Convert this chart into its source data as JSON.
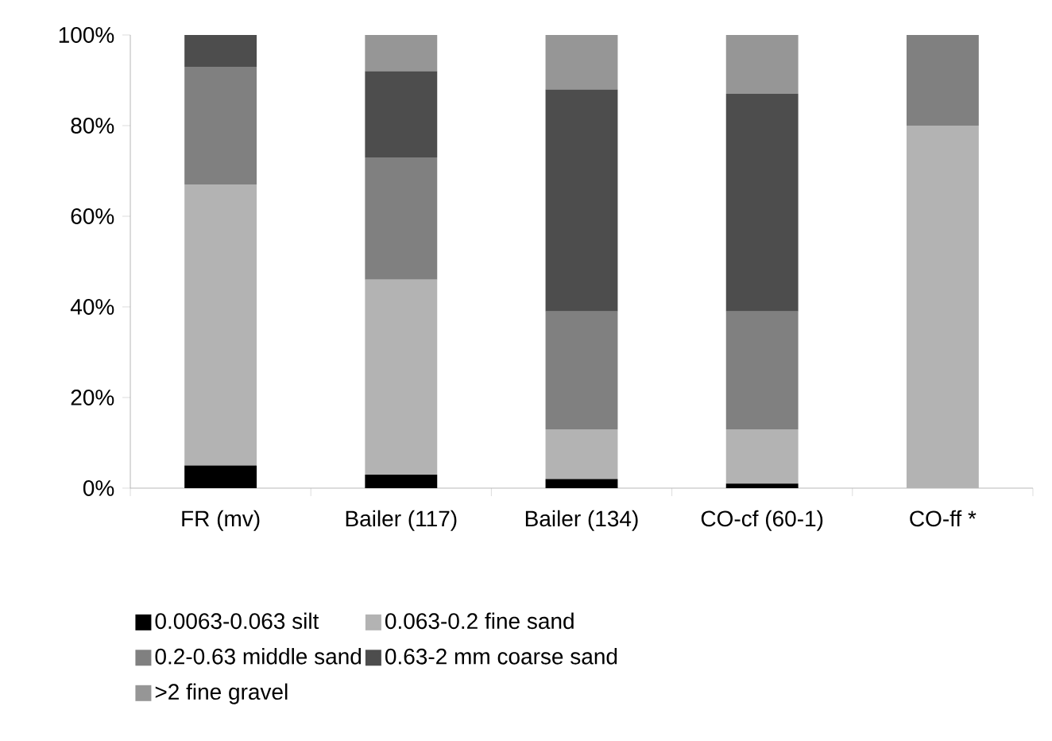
{
  "chart_data": {
    "type": "bar",
    "stacked": true,
    "categories": [
      "FR (mv)",
      "Bailer (117)",
      "Bailer (134)",
      "CO-cf (60-1)",
      "CO-ff *"
    ],
    "series": [
      {
        "name": "0.0063-0.063 silt",
        "color": "#000000",
        "values": [
          5,
          3,
          2,
          1,
          0
        ]
      },
      {
        "name": "0.063-0.2 fine sand",
        "color": "#b3b3b3",
        "values": [
          62,
          43,
          11,
          12,
          80
        ]
      },
      {
        "name": "0.2-0.63 middle sand",
        "color": "#808080",
        "values": [
          26,
          27,
          26,
          26,
          20
        ]
      },
      {
        "name": "0.63-2 mm coarse sand",
        "color": "#4d4d4d",
        "values": [
          7,
          19,
          49,
          48,
          0
        ]
      },
      {
        "name": ">2 fine gravel",
        "color": "#969696",
        "values": [
          0,
          8,
          12,
          13,
          0
        ]
      }
    ],
    "ylim": [
      0,
      100
    ],
    "yticks": [
      {
        "value": 0,
        "label": "0%"
      },
      {
        "value": 20,
        "label": "20%"
      },
      {
        "value": 40,
        "label": "40%"
      },
      {
        "value": 60,
        "label": "60%"
      },
      {
        "value": 80,
        "label": "80%"
      },
      {
        "value": 100,
        "label": "100%"
      }
    ],
    "grid": false,
    "legend": "bottom"
  }
}
